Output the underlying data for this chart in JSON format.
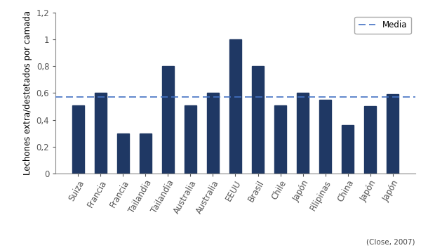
{
  "categories": [
    "Suiza",
    "Francia",
    "Francia",
    "Tailandia",
    "Tailandia",
    "Australia",
    "Australia",
    "EEUU",
    "Brasil",
    "Chile",
    "Japón",
    "Filipinas",
    "China",
    "Japón",
    "Japón"
  ],
  "values": [
    0.51,
    0.6,
    0.3,
    0.3,
    0.8,
    0.51,
    0.6,
    1.0,
    0.8,
    0.51,
    0.6,
    0.55,
    0.36,
    0.5,
    0.59
  ],
  "bar_color": "#1F3864",
  "mean_value": 0.572,
  "mean_color": "#4472C4",
  "ylabel": "Lechones extra/destetados por camada",
  "ylim": [
    0,
    1.2
  ],
  "ytick_values": [
    0,
    0.2,
    0.4,
    0.6,
    0.8,
    1.0,
    1.2
  ],
  "ytick_labels": [
    "0",
    "0,2",
    "0,4",
    "0,6",
    "0,8",
    "1",
    "1,2"
  ],
  "legend_label": "Media",
  "citation": "(Close, 2007)",
  "background_color": "#ffffff",
  "bar_width": 0.55
}
